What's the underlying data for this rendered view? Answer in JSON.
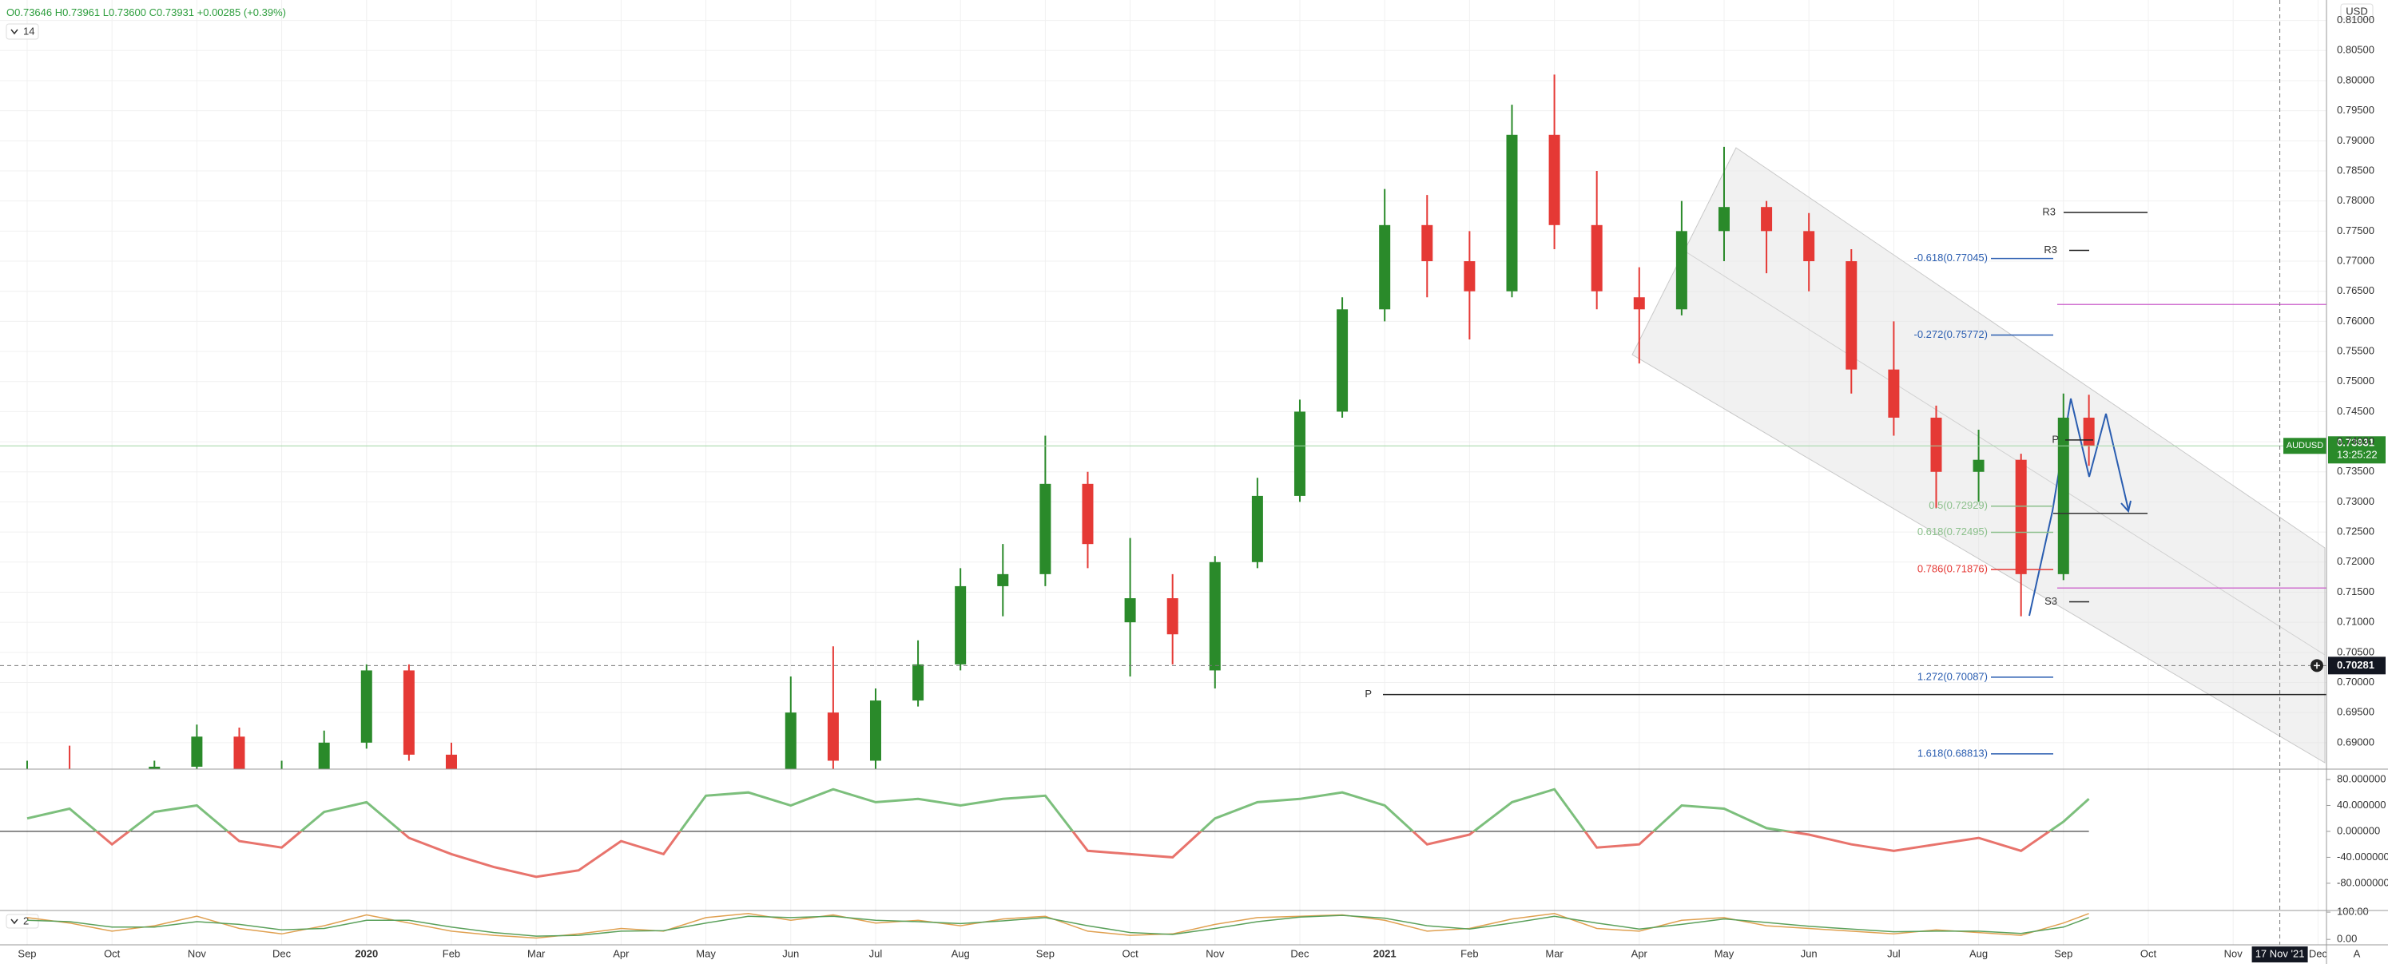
{
  "chart_data": [
    {
      "type": "candlestick",
      "symbol": "AUDUSD",
      "indicator_param": "14",
      "currency": "USD",
      "auto_label": "A",
      "legend": {
        "open_label": "O",
        "open": "0.73646",
        "high_label": "H",
        "high": "0.73961",
        "low_label": "L",
        "low": "0.73600",
        "close_label": "C",
        "close": "0.73931",
        "change": "+0.00285",
        "change_pct": "(+0.39%)"
      },
      "last_price": 0.73931,
      "countdown": "13:25:22",
      "crosshair": {
        "price": 0.70281,
        "x": 26.55,
        "date_label": "17 Nov '21"
      },
      "up_color": "#2a8a2a",
      "down_color": "#e53935",
      "x": [
        0,
        0.5,
        1,
        1.5,
        2,
        2.5,
        3,
        3.5,
        4,
        4.5,
        5,
        9,
        9.5,
        10,
        10.5,
        11,
        11.5,
        12,
        12.5,
        13,
        13.5,
        14,
        14.5,
        15,
        15.5,
        16,
        16.5,
        17,
        17.5,
        18,
        18.5,
        19,
        19.5,
        20,
        20.5,
        21,
        21.5,
        22,
        22.5,
        23,
        23.5,
        24,
        24.3
      ],
      "open": [
        0.676,
        0.685,
        0.676,
        0.681,
        0.686,
        0.691,
        0.681,
        0.684,
        0.69,
        0.702,
        0.688,
        0.67,
        0.695,
        0.687,
        0.697,
        0.703,
        0.716,
        0.718,
        0.733,
        0.71,
        0.714,
        0.702,
        0.72,
        0.731,
        0.745,
        0.762,
        0.776,
        0.77,
        0.765,
        0.791,
        0.776,
        0.764,
        0.762,
        0.775,
        0.779,
        0.775,
        0.77,
        0.752,
        0.744,
        0.735,
        0.737,
        0.718,
        0.744
      ],
      "high": [
        0.687,
        0.6895,
        0.683,
        0.687,
        0.693,
        0.6925,
        0.687,
        0.692,
        0.703,
        0.703,
        0.69,
        0.701,
        0.706,
        0.699,
        0.707,
        0.719,
        0.723,
        0.741,
        0.735,
        0.724,
        0.718,
        0.721,
        0.734,
        0.747,
        0.764,
        0.782,
        0.781,
        0.775,
        0.796,
        0.801,
        0.785,
        0.769,
        0.78,
        0.789,
        0.78,
        0.778,
        0.772,
        0.76,
        0.746,
        0.742,
        0.738,
        0.748,
        0.7478
      ],
      "low": [
        0.674,
        0.678,
        0.672,
        0.679,
        0.685,
        0.68,
        0.677,
        0.683,
        0.689,
        0.687,
        0.676,
        0.668,
        0.683,
        0.685,
        0.696,
        0.702,
        0.711,
        0.716,
        0.719,
        0.701,
        0.703,
        0.699,
        0.719,
        0.73,
        0.744,
        0.76,
        0.764,
        0.757,
        0.764,
        0.772,
        0.762,
        0.753,
        0.761,
        0.77,
        0.768,
        0.765,
        0.748,
        0.741,
        0.729,
        0.73,
        0.711,
        0.717,
        0.736
      ],
      "close": [
        0.685,
        0.68,
        0.681,
        0.686,
        0.691,
        0.681,
        0.684,
        0.69,
        0.702,
        0.688,
        0.678,
        0.695,
        0.687,
        0.697,
        0.703,
        0.716,
        0.718,
        0.733,
        0.723,
        0.714,
        0.708,
        0.72,
        0.731,
        0.745,
        0.762,
        0.776,
        0.77,
        0.765,
        0.791,
        0.776,
        0.765,
        0.762,
        0.775,
        0.779,
        0.775,
        0.77,
        0.752,
        0.744,
        0.735,
        0.737,
        0.718,
        0.744,
        0.73931
      ],
      "xlim": [
        -0.32,
        27.1
      ],
      "ylim": [
        0.6856,
        0.8134
      ],
      "yticks": [
        {
          "value": 0.81,
          "label": "0.81000"
        },
        {
          "value": 0.805,
          "label": "0.80500"
        },
        {
          "value": 0.8,
          "label": "0.80000"
        },
        {
          "value": 0.795,
          "label": "0.79500"
        },
        {
          "value": 0.79,
          "label": "0.79000"
        },
        {
          "value": 0.785,
          "label": "0.78500"
        },
        {
          "value": 0.78,
          "label": "0.78000"
        },
        {
          "value": 0.775,
          "label": "0.77500"
        },
        {
          "value": 0.77,
          "label": "0.77000"
        },
        {
          "value": 0.765,
          "label": "0.76500"
        },
        {
          "value": 0.76,
          "label": "0.76000"
        },
        {
          "value": 0.755,
          "label": "0.75500"
        },
        {
          "value": 0.75,
          "label": "0.75000"
        },
        {
          "value": 0.745,
          "label": "0.74500"
        },
        {
          "value": 0.74,
          "label": "0.74000"
        },
        {
          "value": 0.735,
          "label": "0.73500"
        },
        {
          "value": 0.73,
          "label": "0.73000"
        },
        {
          "value": 0.725,
          "label": "0.72500"
        },
        {
          "value": 0.72,
          "label": "0.72000"
        },
        {
          "value": 0.715,
          "label": "0.71500"
        },
        {
          "value": 0.71,
          "label": "0.71000"
        },
        {
          "value": 0.705,
          "label": "0.70500"
        },
        {
          "value": 0.7,
          "label": "0.70000"
        },
        {
          "value": 0.695,
          "label": "0.69500"
        },
        {
          "value": 0.69,
          "label": "0.69000"
        }
      ],
      "xticks": [
        {
          "value": 0,
          "label": "Sep"
        },
        {
          "value": 1,
          "label": "Oct"
        },
        {
          "value": 2,
          "label": "Nov"
        },
        {
          "value": 3,
          "label": "Dec"
        },
        {
          "value": 4,
          "label": "2020"
        },
        {
          "value": 5,
          "label": "Feb"
        },
        {
          "value": 6,
          "label": "Mar"
        },
        {
          "value": 7,
          "label": "Apr"
        },
        {
          "value": 8,
          "label": "May"
        },
        {
          "value": 9,
          "label": "Jun"
        },
        {
          "value": 10,
          "label": "Jul"
        },
        {
          "value": 11,
          "label": "Aug"
        },
        {
          "value": 12,
          "label": "Sep"
        },
        {
          "value": 13,
          "label": "Oct"
        },
        {
          "value": 14,
          "label": "Nov"
        },
        {
          "value": 15,
          "label": "Dec"
        },
        {
          "value": 16,
          "label": "2021"
        },
        {
          "value": 17,
          "label": "Feb"
        },
        {
          "value": 18,
          "label": "Mar"
        },
        {
          "value": 19,
          "label": "Apr"
        },
        {
          "value": 20,
          "label": "May"
        },
        {
          "value": 21,
          "label": "Jun"
        },
        {
          "value": 22,
          "label": "Jul"
        },
        {
          "value": 23,
          "label": "Aug"
        },
        {
          "value": 24,
          "label": "Sep"
        },
        {
          "value": 25,
          "label": "Oct"
        },
        {
          "value": 26,
          "label": "Nov"
        },
        {
          "value": 27,
          "label": "Dec"
        }
      ],
      "grid": true,
      "fib_levels": [
        {
          "label": "-0.618(0.77045)",
          "value": 0.77045,
          "color": "#2a5db0"
        },
        {
          "label": "-0.272(0.75772)",
          "value": 0.75772,
          "color": "#2a5db0"
        },
        {
          "label": "0.5(0.72929)",
          "value": 0.72929,
          "color": "#8cc08c"
        },
        {
          "label": "0.618(0.72495)",
          "value": 0.72495,
          "color": "#8cc08c"
        },
        {
          "label": "0.786(0.71876)",
          "value": 0.71876,
          "color": "#e53935"
        },
        {
          "label": "1.272(0.70087)",
          "value": 0.70087,
          "color": "#2a5db0"
        },
        {
          "label": "1.618(0.68813)",
          "value": 0.68813,
          "color": "#2a5db0"
        }
      ],
      "pivots": [
        {
          "label": "R3",
          "value": 0.7781
        },
        {
          "label": "R3",
          "value": 0.7718
        },
        {
          "label": "P",
          "value": 0.7403
        },
        {
          "label": "S3",
          "value": 0.7134
        },
        {
          "label": "P",
          "value": 0.698
        }
      ],
      "levels": [
        {
          "value": 0.7628,
          "color": "#d070d0"
        },
        {
          "value": 0.7157,
          "color": "#d070d0"
        },
        {
          "value": 0.7281,
          "color": "#333333"
        }
      ]
    },
    {
      "type": "line",
      "up_color": "#7cbf7c",
      "down_color": "#e8736c",
      "x": [
        0,
        0.5,
        1,
        1.5,
        2,
        2.5,
        3,
        3.5,
        4,
        4.5,
        5,
        5.5,
        6,
        6.5,
        7,
        7.5,
        8,
        8.5,
        9,
        9.5,
        10,
        10.5,
        11,
        11.5,
        12,
        12.5,
        13,
        13.5,
        14,
        14.5,
        15,
        15.5,
        16,
        16.5,
        17,
        17.5,
        18,
        18.5,
        19,
        19.5,
        20,
        20.5,
        21,
        21.5,
        22,
        22.5,
        23,
        23.5,
        24,
        24.3
      ],
      "values": [
        20,
        35,
        -20,
        30,
        40,
        -15,
        -25,
        30,
        45,
        -10,
        -35,
        -55,
        -70,
        -60,
        -15,
        -35,
        55,
        60,
        40,
        65,
        45,
        50,
        40,
        50,
        55,
        -30,
        -35,
        -40,
        20,
        45,
        50,
        60,
        40,
        -20,
        -5,
        45,
        65,
        -25,
        -20,
        40,
        35,
        5,
        -5,
        -20,
        -30,
        -20,
        -10,
        -30,
        15,
        50
      ],
      "ylim": [
        -122,
        96
      ],
      "yticks": [
        {
          "value": 80,
          "label": "80.000000"
        },
        {
          "value": 40,
          "label": "40.000000"
        },
        {
          "value": 0,
          "label": "0.000000"
        },
        {
          "value": -40,
          "label": "-40.000000"
        },
        {
          "value": -80,
          "label": "-80.000000"
        }
      ]
    },
    {
      "type": "line",
      "param_label": "2",
      "x": [
        0,
        0.5,
        1,
        1.5,
        2,
        2.5,
        3,
        3.5,
        4,
        4.5,
        5,
        5.5,
        6,
        6.5,
        7,
        7.5,
        8,
        8.5,
        9,
        9.5,
        10,
        10.5,
        11,
        11.5,
        12,
        12.5,
        13,
        13.5,
        14,
        14.5,
        15,
        15.5,
        16,
        16.5,
        17,
        17.5,
        18,
        18.5,
        19,
        19.5,
        20,
        20.5,
        21,
        21.5,
        22,
        22.5,
        23,
        23.5,
        24,
        24.3
      ],
      "series": [
        {
          "color": "#e0a050",
          "values": [
            80,
            60,
            30,
            50,
            85,
            40,
            20,
            50,
            90,
            60,
            30,
            15,
            5,
            20,
            40,
            30,
            80,
            95,
            70,
            90,
            60,
            70,
            50,
            75,
            85,
            30,
            15,
            20,
            55,
            80,
            85,
            90,
            70,
            30,
            40,
            75,
            95,
            40,
            30,
            70,
            80,
            50,
            40,
            30,
            20,
            35,
            25,
            15,
            60,
            95
          ]
        },
        {
          "color": "#5aa05a",
          "values": [
            70,
            65,
            45,
            45,
            65,
            55,
            35,
            40,
            70,
            70,
            45,
            25,
            12,
            15,
            30,
            32,
            60,
            85,
            80,
            85,
            70,
            65,
            58,
            68,
            80,
            50,
            25,
            18,
            40,
            65,
            82,
            88,
            78,
            50,
            38,
            60,
            85,
            60,
            38,
            55,
            75,
            62,
            48,
            38,
            28,
            30,
            30,
            22,
            45,
            80
          ]
        }
      ],
      "ylim": [
        -20,
        106
      ],
      "yticks": [
        {
          "value": 100,
          "label": "100.00"
        },
        {
          "value": 0,
          "label": "0.00"
        }
      ]
    }
  ]
}
